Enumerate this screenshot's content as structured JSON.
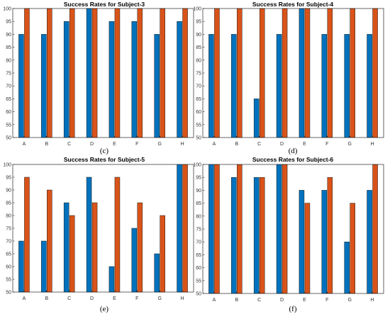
{
  "colors": {
    "series1": "#0072BD",
    "series2": "#D95319",
    "axes": "#262626",
    "background": "#ffffff"
  },
  "chart_data": [
    {
      "type": "bar",
      "panel_label": "(c)",
      "title": "Success Rates for Subject-3",
      "categories": [
        "A",
        "B",
        "C",
        "D",
        "E",
        "F",
        "G",
        "H"
      ],
      "series": [
        {
          "values": [
            90,
            90,
            95,
            100,
            95,
            95,
            90,
            95
          ]
        },
        {
          "values": [
            100,
            100,
            100,
            100,
            100,
            100,
            100,
            100
          ]
        }
      ],
      "ylim": [
        50,
        100
      ],
      "yticks": [
        50,
        55,
        60,
        65,
        70,
        75,
        80,
        85,
        90,
        95,
        100
      ],
      "grid": false
    },
    {
      "type": "bar",
      "panel_label": "(d)",
      "title": "Success Rates for Subject-4",
      "categories": [
        "A",
        "B",
        "C",
        "D",
        "E",
        "F",
        "G",
        "H"
      ],
      "series": [
        {
          "values": [
            90,
            90,
            65,
            90,
            100,
            90,
            90,
            90
          ]
        },
        {
          "values": [
            100,
            100,
            100,
            100,
            100,
            100,
            100,
            100
          ]
        }
      ],
      "ylim": [
        50,
        100
      ],
      "yticks": [
        50,
        55,
        60,
        65,
        70,
        75,
        80,
        85,
        90,
        95,
        100
      ],
      "grid": false
    },
    {
      "type": "bar",
      "panel_label": "(e)",
      "title": "Success Rates for Subject-5",
      "categories": [
        "A",
        "B",
        "C",
        "D",
        "E",
        "F",
        "G",
        "H"
      ],
      "series": [
        {
          "values": [
            70,
            70,
            85,
            95,
            60,
            75,
            65,
            100
          ]
        },
        {
          "values": [
            95,
            90,
            80,
            85,
            95,
            85,
            80,
            100
          ]
        }
      ],
      "ylim": [
        50,
        100
      ],
      "yticks": [
        50,
        55,
        60,
        65,
        70,
        75,
        80,
        85,
        90,
        95,
        100
      ],
      "grid": false
    },
    {
      "type": "bar",
      "panel_label": "(f)",
      "title": "Success Rates for Subject-6",
      "categories": [
        "A",
        "B",
        "C",
        "D",
        "E",
        "F",
        "G",
        "H"
      ],
      "series": [
        {
          "values": [
            100,
            95,
            95,
            100,
            90,
            90,
            70,
            90
          ]
        },
        {
          "values": [
            100,
            100,
            95,
            100,
            85,
            95,
            85,
            100
          ]
        }
      ],
      "ylim": [
        50,
        100
      ],
      "yticks": [
        50,
        55,
        60,
        65,
        70,
        75,
        80,
        85,
        90,
        95,
        100
      ],
      "grid": false
    }
  ]
}
